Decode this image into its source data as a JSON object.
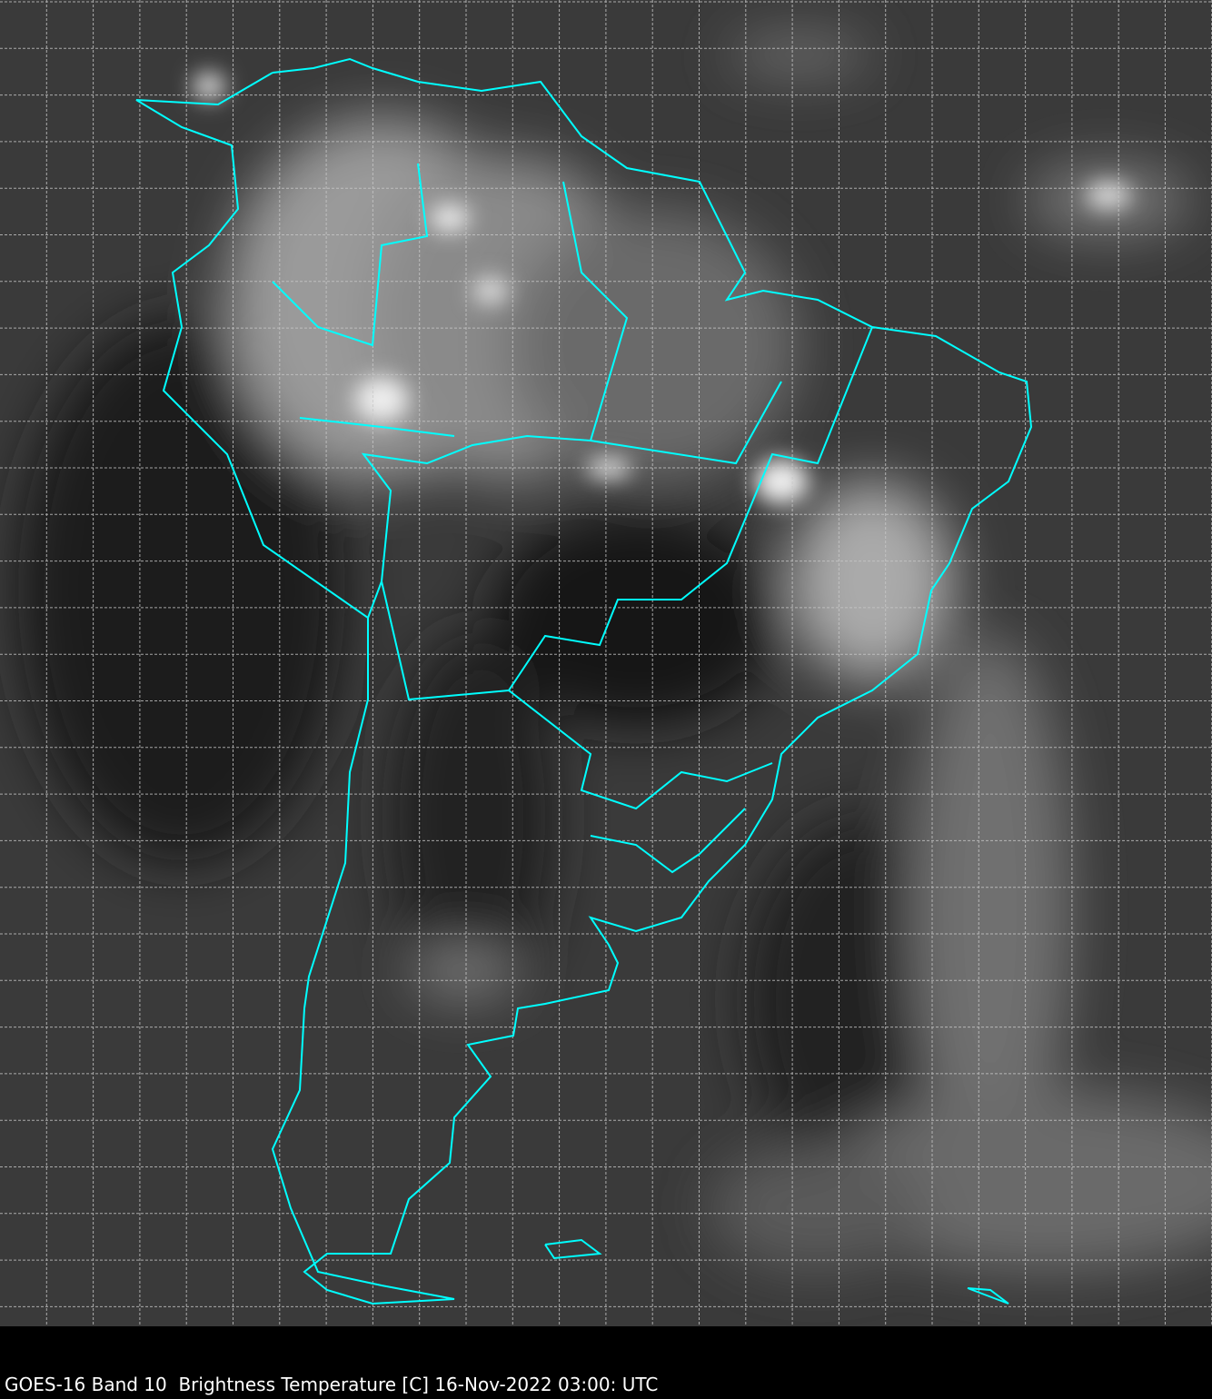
{
  "caption": "GOES-16 Band 10  Brightness Temperature [C] 16-Nov-2022 03:00: UTC",
  "map": {
    "satellite": "GOES-16",
    "band": "Band 10",
    "quantity": "Brightness Temperature [C]",
    "colormap": "grayscale",
    "border_color": "#00ffff",
    "grid_color": "#c8c8c8",
    "grid": true,
    "background_color": "#000000"
  }
}
